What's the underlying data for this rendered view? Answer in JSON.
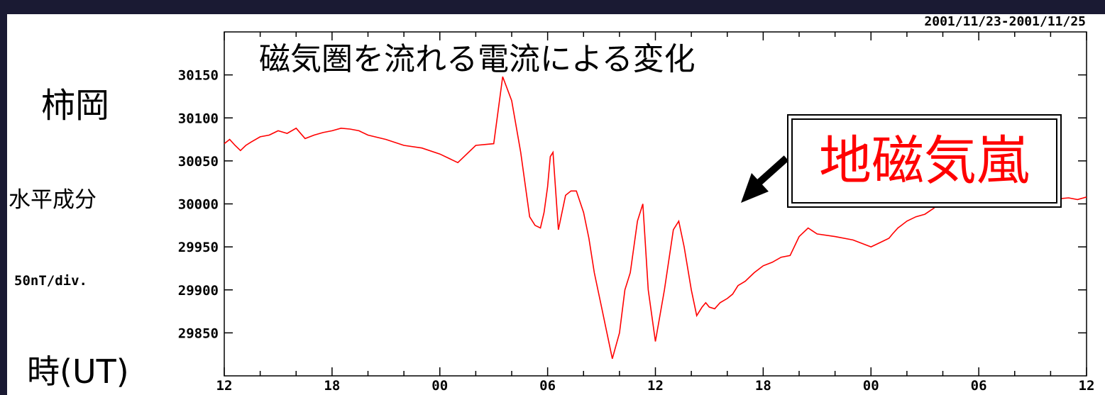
{
  "chart_data": {
    "type": "line",
    "date_range": "2001/11/23-2001/11/25",
    "title": "磁気圏を流れる電流による変化",
    "station": "柿岡",
    "ylabel": "水平成分",
    "scale_label": "50nT/div.",
    "xlabel": "時(UT)",
    "annotation": "地磁気嵐",
    "line_color": "#ff0000",
    "annotation_color": "#ff0000",
    "y_ticks": [
      29850,
      29900,
      29950,
      30000,
      30050,
      30100,
      30150
    ],
    "ylim": [
      29800,
      30200
    ],
    "x_ticks": [
      "12",
      "18",
      "00",
      "06",
      "12",
      "18",
      "00",
      "06",
      "12"
    ],
    "xlim": [
      0,
      48
    ],
    "grid": false,
    "series": [
      {
        "x": [
          0,
          0.3,
          0.6,
          0.9,
          1.2,
          1.5,
          2,
          2.5,
          3,
          3.5,
          4,
          4.5,
          5,
          5.5,
          6,
          6.5,
          7,
          7.5,
          8,
          9,
          10,
          11,
          12,
          13,
          14,
          15,
          15.5,
          16,
          16.5,
          17,
          17.3,
          17.6,
          17.8,
          18,
          18.15,
          18.3,
          18.6,
          19,
          19.3,
          19.6,
          20,
          20.3,
          20.6,
          21,
          21.3,
          21.6,
          22,
          22.3,
          22.6,
          23,
          23.3,
          23.6,
          24,
          24.5,
          25,
          25.3,
          25.6,
          26,
          26.3,
          26.6,
          26.8,
          27,
          27.3,
          27.6,
          28,
          28.3,
          28.6,
          29,
          29.5,
          30,
          30.5,
          31,
          31.5,
          32,
          32.5,
          33,
          34,
          35,
          36,
          36.5,
          37,
          37.2,
          37.5,
          38,
          38.5,
          39,
          39.5,
          40,
          40.5,
          41,
          41.5,
          42,
          42.5,
          43,
          44,
          45,
          45.5,
          46,
          46.5,
          47,
          47.5,
          48
        ],
        "y": [
          30070,
          30075,
          30068,
          30062,
          30068,
          30072,
          30078,
          30080,
          30085,
          30082,
          30088,
          30076,
          30080,
          30083,
          30085,
          30088,
          30087,
          30085,
          30080,
          30075,
          30068,
          30065,
          30058,
          30048,
          30068,
          30070,
          30148,
          30120,
          30060,
          29985,
          29975,
          29972,
          29990,
          30020,
          30055,
          30060,
          29970,
          30010,
          30015,
          30015,
          29990,
          29960,
          29920,
          29880,
          29850,
          29820,
          29850,
          29900,
          29920,
          29980,
          30000,
          29900,
          29840,
          29900,
          29970,
          29980,
          29950,
          29900,
          29870,
          29880,
          29885,
          29880,
          29878,
          29885,
          29890,
          29895,
          29905,
          29910,
          29920,
          29928,
          29932,
          29938,
          29940,
          29962,
          29972,
          29965,
          29962,
          29958,
          29950,
          29955,
          29960,
          29965,
          29972,
          29980,
          29985,
          29988,
          29995,
          30005,
          29998,
          30000,
          30002,
          30005,
          30000,
          30004,
          30010,
          30005,
          30008,
          30004,
          30006,
          30007,
          30005,
          30008
        ]
      }
    ]
  }
}
